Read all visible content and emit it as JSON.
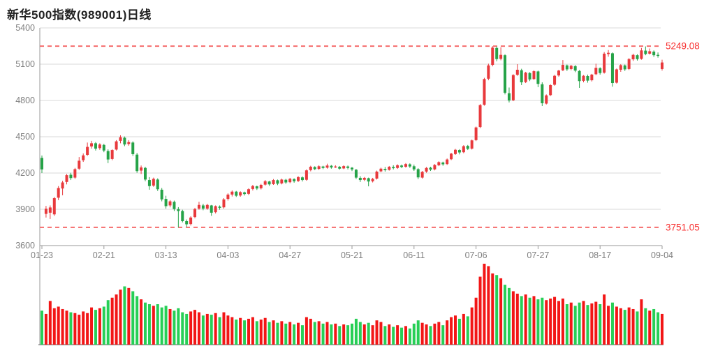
{
  "title": "新华500指数(989001)日线",
  "colors": {
    "up_candle": "#e8393c",
    "down_candle": "#26a348",
    "up_volume": "#f21616",
    "down_volume": "#27cf56",
    "dashed_line": "#f56c6c",
    "annotation_text": "#f73030",
    "grid_line": "#d9d9d9",
    "axis_line": "#999999",
    "axis_text": "#808080",
    "title_text": "#222222",
    "background": "#ffffff",
    "volume_baseline": "#8c8c8c"
  },
  "chart_data": {
    "type": "candlestick",
    "title": "新华500指数(989001)日线",
    "ylabel": "",
    "xlabel": "",
    "ylim": [
      3600,
      5400
    ],
    "y_ticks": [
      5400,
      5100,
      4800,
      4500,
      4200,
      3900,
      3600
    ],
    "x_tick_labels": [
      "01-23",
      "02-21",
      "03-13",
      "04-03",
      "04-27",
      "05-21",
      "06-11",
      "07-06",
      "07-27",
      "08-17",
      "09-04"
    ],
    "x_tick_indices": [
      0,
      15,
      30,
      45,
      60,
      75,
      90,
      105,
      120,
      135,
      150
    ],
    "grid": true,
    "legend_position": "none",
    "high_line": {
      "value": 5249.08,
      "label": "5249.08"
    },
    "low_line": {
      "value": 3751.05,
      "label": "3751.05"
    },
    "volume_panel": true,
    "candles_ohlcv": [
      [
        4325,
        4345,
        4200,
        4230,
        42
      ],
      [
        3862,
        3928,
        3832,
        3905,
        38
      ],
      [
        3872,
        3932,
        3820,
        3915,
        54
      ],
      [
        3858,
        4002,
        3846,
        3992,
        45
      ],
      [
        3996,
        4092,
        3976,
        4076,
        47
      ],
      [
        4072,
        4136,
        4016,
        4122,
        44
      ],
      [
        4126,
        4192,
        4106,
        4182,
        42
      ],
      [
        4186,
        4202,
        4142,
        4158,
        40
      ],
      [
        4162,
        4242,
        4152,
        4232,
        39
      ],
      [
        4236,
        4332,
        4226,
        4302,
        37
      ],
      [
        4306,
        4362,
        4292,
        4346,
        41
      ],
      [
        4350,
        4452,
        4342,
        4416,
        39
      ],
      [
        4420,
        4466,
        4402,
        4446,
        46
      ],
      [
        4446,
        4456,
        4386,
        4402,
        43
      ],
      [
        4406,
        4446,
        4392,
        4436,
        45
      ],
      [
        4432,
        4442,
        4372,
        4386,
        47
      ],
      [
        4382,
        4396,
        4282,
        4312,
        55
      ],
      [
        4316,
        4396,
        4306,
        4390,
        58
      ],
      [
        4394,
        4472,
        4386,
        4462,
        62
      ],
      [
        4466,
        4512,
        4446,
        4496,
        68
      ],
      [
        4492,
        4502,
        4422,
        4436,
        72
      ],
      [
        4440,
        4472,
        4426,
        4456,
        70
      ],
      [
        4452,
        4462,
        4342,
        4356,
        66
      ],
      [
        4352,
        4366,
        4202,
        4216,
        60
      ],
      [
        4220,
        4262,
        4192,
        4246,
        56
      ],
      [
        4242,
        4252,
        4132,
        4146,
        52
      ],
      [
        4142,
        4166,
        4062,
        4092,
        50
      ],
      [
        4096,
        4162,
        4086,
        4152,
        48
      ],
      [
        4146,
        4156,
        4052,
        4066,
        50
      ],
      [
        4062,
        4076,
        3966,
        3982,
        46
      ],
      [
        3986,
        4012,
        3906,
        3926,
        48
      ],
      [
        3932,
        3976,
        3916,
        3966,
        44
      ],
      [
        3962,
        3972,
        3886,
        3902,
        42
      ],
      [
        3902,
        3918,
        3751.05,
        3886,
        45
      ],
      [
        3886,
        3896,
        3792,
        3802,
        40
      ],
      [
        3802,
        3816,
        3756,
        3776,
        38
      ],
      [
        3778,
        3842,
        3766,
        3832,
        41
      ],
      [
        3836,
        3912,
        3826,
        3902,
        43
      ],
      [
        3906,
        3962,
        3896,
        3936,
        40
      ],
      [
        3932,
        3946,
        3892,
        3906,
        36
      ],
      [
        3906,
        3946,
        3896,
        3936,
        38
      ],
      [
        3932,
        3936,
        3846,
        3872,
        37
      ],
      [
        3876,
        3932,
        3866,
        3926,
        39
      ],
      [
        3922,
        3932,
        3896,
        3912,
        34
      ],
      [
        3916,
        3992,
        3906,
        3982,
        40
      ],
      [
        3986,
        4032,
        3972,
        4022,
        36
      ],
      [
        4022,
        4056,
        4006,
        4046,
        34
      ],
      [
        4046,
        4052,
        4002,
        4012,
        31
      ],
      [
        4014,
        4049,
        4004,
        4042,
        33
      ],
      [
        4040,
        4046,
        4014,
        4026,
        30
      ],
      [
        4028,
        4074,
        4018,
        4066,
        32
      ],
      [
        4068,
        4102,
        4056,
        4092,
        34
      ],
      [
        4090,
        4096,
        4060,
        4072,
        29
      ],
      [
        4074,
        4110,
        4064,
        4102,
        31
      ],
      [
        4104,
        4142,
        4096,
        4132,
        33
      ],
      [
        4130,
        4136,
        4094,
        4106,
        28
      ],
      [
        4108,
        4150,
        4102,
        4142,
        30
      ],
      [
        4140,
        4146,
        4100,
        4112,
        27
      ],
      [
        4114,
        4154,
        4106,
        4146,
        29
      ],
      [
        4144,
        4152,
        4110,
        4122,
        26
      ],
      [
        4124,
        4160,
        4116,
        4152,
        28
      ],
      [
        4150,
        4156,
        4120,
        4132,
        25
      ],
      [
        4134,
        4174,
        4126,
        4166,
        27
      ],
      [
        4164,
        4172,
        4130,
        4142,
        24
      ],
      [
        4144,
        4230,
        4136,
        4222,
        34
      ],
      [
        4224,
        4260,
        4214,
        4252,
        32
      ],
      [
        4250,
        4256,
        4224,
        4232,
        28
      ],
      [
        4234,
        4264,
        4226,
        4256,
        29
      ],
      [
        4254,
        4260,
        4232,
        4242,
        26
      ],
      [
        4244,
        4277,
        4236,
        4262,
        28
      ],
      [
        4260,
        4266,
        4236,
        4246,
        25
      ],
      [
        4248,
        4264,
        4242,
        4254,
        26
      ],
      [
        4252,
        4258,
        4228,
        4236,
        23
      ],
      [
        4238,
        4264,
        4232,
        4257,
        25
      ],
      [
        4254,
        4262,
        4230,
        4242,
        24
      ],
      [
        4244,
        4250,
        4216,
        4230,
        26
      ],
      [
        4227,
        4234,
        4150,
        4162,
        32
      ],
      [
        4160,
        4174,
        4126,
        4142,
        28
      ],
      [
        4144,
        4167,
        4134,
        4160,
        25
      ],
      [
        4157,
        4162,
        4090,
        4130,
        27
      ],
      [
        4132,
        4160,
        4122,
        4152,
        24
      ],
      [
        4154,
        4220,
        4146,
        4212,
        30
      ],
      [
        4214,
        4244,
        4206,
        4236,
        28
      ],
      [
        4234,
        4250,
        4212,
        4224,
        23
      ],
      [
        4226,
        4258,
        4220,
        4252,
        25
      ],
      [
        4250,
        4264,
        4230,
        4240,
        22
      ],
      [
        4242,
        4272,
        4234,
        4264,
        24
      ],
      [
        4262,
        4270,
        4240,
        4250,
        21
      ],
      [
        4252,
        4282,
        4244,
        4274,
        23
      ],
      [
        4272,
        4280,
        4242,
        4254,
        20
      ],
      [
        4256,
        4270,
        4217,
        4230,
        26
      ],
      [
        4232,
        4240,
        4150,
        4164,
        30
      ],
      [
        4162,
        4217,
        4154,
        4210,
        27
      ],
      [
        4212,
        4250,
        4202,
        4242,
        25
      ],
      [
        4244,
        4252,
        4217,
        4228,
        23
      ],
      [
        4230,
        4274,
        4222,
        4267,
        26
      ],
      [
        4264,
        4297,
        4257,
        4290,
        28
      ],
      [
        4287,
        4294,
        4260,
        4272,
        24
      ],
      [
        4274,
        4320,
        4267,
        4312,
        30
      ],
      [
        4314,
        4367,
        4307,
        4360,
        34
      ],
      [
        4357,
        4400,
        4350,
        4392,
        36
      ],
      [
        4390,
        4397,
        4354,
        4370,
        32
      ],
      [
        4372,
        4430,
        4364,
        4422,
        38
      ],
      [
        4424,
        4432,
        4390,
        4400,
        35
      ],
      [
        4402,
        4477,
        4394,
        4470,
        46
      ],
      [
        4472,
        4584,
        4464,
        4577,
        58
      ],
      [
        4580,
        4770,
        4572,
        4762,
        84
      ],
      [
        4764,
        4987,
        4757,
        4977,
        100
      ],
      [
        4980,
        5104,
        4967,
        5090,
        97
      ],
      [
        5094,
        5249.08,
        5082,
        5237,
        88
      ],
      [
        5234,
        5247,
        5124,
        5142,
        86
      ],
      [
        5144,
        5240,
        5132,
        5177,
        82
      ],
      [
        5174,
        5182,
        4850,
        4864,
        74
      ],
      [
        4860,
        4907,
        4784,
        4800,
        70
      ],
      [
        4802,
        5017,
        4794,
        5010,
        66
      ],
      [
        5012,
        5100,
        5004,
        5054,
        63
      ],
      [
        5050,
        5062,
        4927,
        4950,
        60
      ],
      [
        4952,
        5037,
        4944,
        5030,
        62
      ],
      [
        5027,
        5034,
        4960,
        4974,
        58
      ],
      [
        4977,
        5050,
        4970,
        5042,
        60
      ],
      [
        5040,
        5047,
        4910,
        4937,
        56
      ],
      [
        4934,
        4950,
        4754,
        4777,
        58
      ],
      [
        4774,
        4850,
        4767,
        4842,
        55
      ],
      [
        4844,
        4934,
        4837,
        4927,
        57
      ],
      [
        4930,
        5012,
        4922,
        5004,
        59
      ],
      [
        5007,
        5054,
        4997,
        5047,
        54
      ],
      [
        5050,
        5134,
        5042,
        5094,
        57
      ],
      [
        5090,
        5097,
        5044,
        5057,
        50
      ],
      [
        5060,
        5094,
        5050,
        5087,
        52
      ],
      [
        5084,
        5092,
        5034,
        5047,
        48
      ],
      [
        5044,
        5052,
        4904,
        4960,
        52
      ],
      [
        4962,
        5010,
        4950,
        5004,
        54
      ],
      [
        5002,
        5014,
        4947,
        4964,
        49
      ],
      [
        4967,
        5020,
        4957,
        5014,
        51
      ],
      [
        5017,
        5104,
        5010,
        5070,
        53
      ],
      [
        5067,
        5074,
        5014,
        5027,
        50
      ],
      [
        5030,
        5200,
        5022,
        5187,
        62
      ],
      [
        5184,
        5217,
        5162,
        5194,
        48
      ],
      [
        5190,
        5197,
        4914,
        4944,
        52
      ],
      [
        4947,
        5064,
        4940,
        5057,
        47
      ],
      [
        5054,
        5100,
        5037,
        5092,
        45
      ],
      [
        5090,
        5097,
        5044,
        5057,
        43
      ],
      [
        5060,
        5150,
        5052,
        5142,
        46
      ],
      [
        5140,
        5187,
        5127,
        5177,
        44
      ],
      [
        5174,
        5182,
        5130,
        5142,
        41
      ],
      [
        5144,
        5234,
        5137,
        5214,
        56
      ],
      [
        5212,
        5247,
        5174,
        5184,
        45
      ],
      [
        5187,
        5230,
        5180,
        5207,
        42
      ],
      [
        5204,
        5214,
        5160,
        5174,
        44
      ],
      [
        5177,
        5197,
        5154,
        5170,
        40
      ],
      [
        5060,
        5137,
        5047,
        5114,
        38
      ]
    ]
  }
}
